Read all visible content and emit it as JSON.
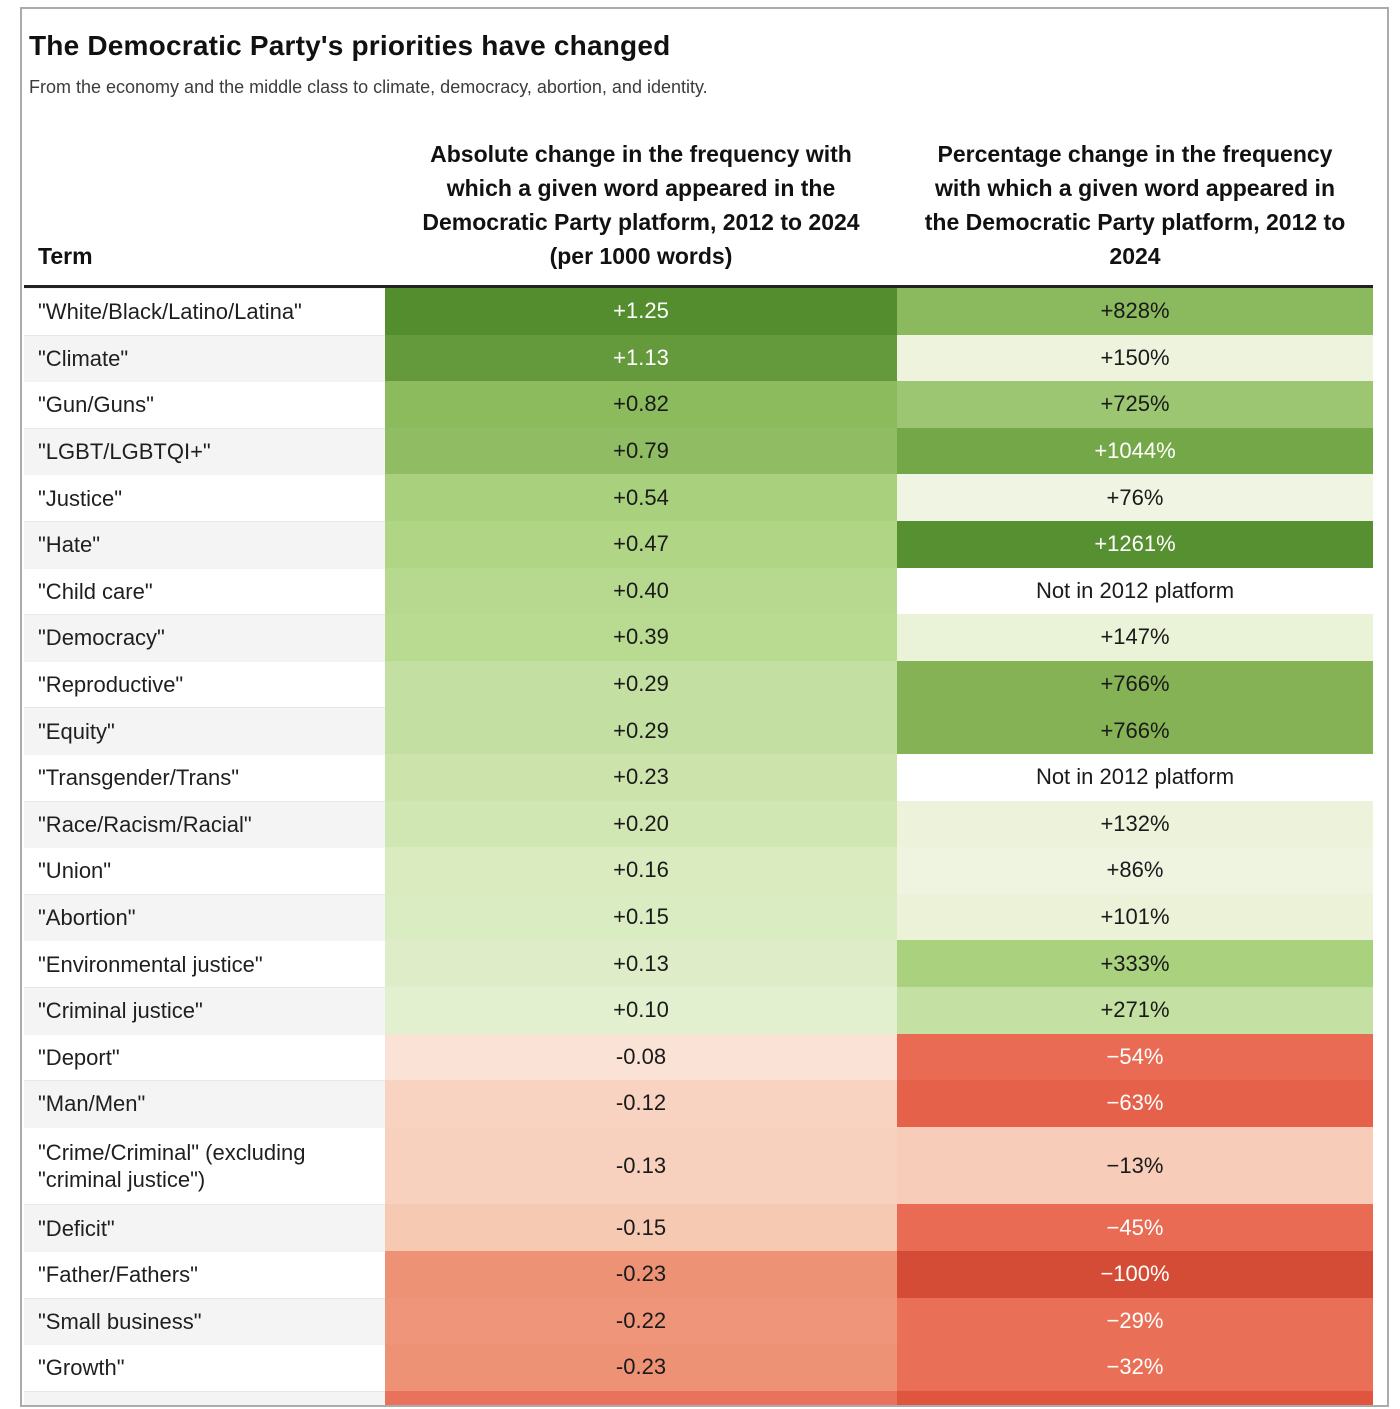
{
  "header": {
    "title": "The Democratic Party's priorities have changed",
    "subtitle": "From the economy and the middle class to climate, democracy, abortion, and identity."
  },
  "table": {
    "columns": {
      "term": "Term",
      "absolute": "Absolute change in the frequency with which a given word appeared in the Democratic Party platform, 2012 to 2024 (per 1000 words)",
      "percent": "Percentage change in the frequency with which a given word appeared in the Democratic Party platform, 2012 to 2024"
    },
    "rows": [
      {
        "term": "\"White/Black/Latino/Latina\"",
        "abs": "+1.25",
        "abs_bg": "#538d2d",
        "abs_fg": "#ffffff",
        "pct": "+828%",
        "pct_bg": "#8bb95e",
        "pct_fg": "#1a1a1a"
      },
      {
        "term": "\"Climate\"",
        "abs": "+1.13",
        "abs_bg": "#649a3c",
        "abs_fg": "#ffffff",
        "pct": "+150%",
        "pct_bg": "#edf3dc",
        "pct_fg": "#1a1a1a"
      },
      {
        "term": "\"Gun/Guns\"",
        "abs": "+0.82",
        "abs_bg": "#8cbb5e",
        "abs_fg": "#1a1a1a",
        "pct": "+725%",
        "pct_bg": "#9cc672",
        "pct_fg": "#1a1a1a"
      },
      {
        "term": "\"LGBT/LGBTQI+\"",
        "abs": "+0.79",
        "abs_bg": "#90bd63",
        "abs_fg": "#1a1a1a",
        "pct": "+1044%",
        "pct_bg": "#74a747",
        "pct_fg": "#ffffff"
      },
      {
        "term": "\"Justice\"",
        "abs": "+0.54",
        "abs_bg": "#a9d07c",
        "abs_fg": "#1a1a1a",
        "pct": "+76%",
        "pct_bg": "#f0f4e3",
        "pct_fg": "#1a1a1a"
      },
      {
        "term": "\"Hate\"",
        "abs": "+0.47",
        "abs_bg": "#b0d585",
        "abs_fg": "#1a1a1a",
        "pct": "+1261%",
        "pct_bg": "#579030",
        "pct_fg": "#ffffff"
      },
      {
        "term": "\"Child care\"",
        "abs": "+0.40",
        "abs_bg": "#b7d98f",
        "abs_fg": "#1a1a1a",
        "pct": "Not in 2012 platform",
        "pct_bg": "#ffffff",
        "pct_fg": "#1a1a1a"
      },
      {
        "term": "\"Democracy\"",
        "abs": "+0.39",
        "abs_bg": "#b8da91",
        "abs_fg": "#1a1a1a",
        "pct": "+147%",
        "pct_bg": "#eaf2d7",
        "pct_fg": "#1a1a1a"
      },
      {
        "term": "\"Reproductive\"",
        "abs": "+0.29",
        "abs_bg": "#c3dfa1",
        "abs_fg": "#1a1a1a",
        "pct": "+766%",
        "pct_bg": "#84b254",
        "pct_fg": "#1a1a1a"
      },
      {
        "term": "\"Equity\"",
        "abs": "+0.29",
        "abs_bg": "#c3dfa1",
        "abs_fg": "#1a1a1a",
        "pct": "+766%",
        "pct_bg": "#84b254",
        "pct_fg": "#1a1a1a"
      },
      {
        "term": "\"Transgender/Trans\"",
        "abs": "+0.23",
        "abs_bg": "#cce4ac",
        "abs_fg": "#1a1a1a",
        "pct": "Not in 2012 platform",
        "pct_bg": "#ffffff",
        "pct_fg": "#1a1a1a"
      },
      {
        "term": "\"Race/Racism/Racial\"",
        "abs": "+0.20",
        "abs_bg": "#d1e7b3",
        "abs_fg": "#1a1a1a",
        "pct": "+132%",
        "pct_bg": "#ecf3da",
        "pct_fg": "#1a1a1a"
      },
      {
        "term": "\"Union\"",
        "abs": "+0.16",
        "abs_bg": "#d9ebbf",
        "abs_fg": "#1a1a1a",
        "pct": "+86%",
        "pct_bg": "#eff4e1",
        "pct_fg": "#1a1a1a"
      },
      {
        "term": "\"Abortion\"",
        "abs": "+0.15",
        "abs_bg": "#daecc1",
        "abs_fg": "#1a1a1a",
        "pct": "+101%",
        "pct_bg": "#ebf2d8",
        "pct_fg": "#1a1a1a"
      },
      {
        "term": "\"Environmental justice\"",
        "abs": "+0.13",
        "abs_bg": "#deedc7",
        "abs_fg": "#1a1a1a",
        "pct": "+333%",
        "pct_bg": "#aad17e",
        "pct_fg": "#1a1a1a"
      },
      {
        "term": "\"Criminal justice\"",
        "abs": "+0.10",
        "abs_bg": "#e3f0cf",
        "abs_fg": "#1a1a1a",
        "pct": "+271%",
        "pct_bg": "#c4e0a3",
        "pct_fg": "#1a1a1a"
      },
      {
        "term": "\"Deport\"",
        "abs": "-0.08",
        "abs_bg": "#fbe2d7",
        "abs_fg": "#1a1a1a",
        "pct": "−54%",
        "pct_bg": "#e96b53",
        "pct_fg": "#ffffff"
      },
      {
        "term": "\"Man/Men\"",
        "abs": "-0.12",
        "abs_bg": "#f8d3c1",
        "abs_fg": "#1a1a1a",
        "pct": "−63%",
        "pct_bg": "#e66149",
        "pct_fg": "#ffffff"
      },
      {
        "term": "\"Crime/Criminal\" (excluding \"criminal justice\")",
        "abs": "-0.13",
        "abs_bg": "#f8d1be",
        "abs_fg": "#1a1a1a",
        "pct": "−13%",
        "pct_bg": "#f7ccb8",
        "pct_fg": "#1a1a1a",
        "tall": true
      },
      {
        "term": "\"Deficit\"",
        "abs": "-0.15",
        "abs_bg": "#f6c9b3",
        "abs_fg": "#1a1a1a",
        "pct": "−45%",
        "pct_bg": "#e96b53",
        "pct_fg": "#ffffff"
      },
      {
        "term": "\"Father/Fathers\"",
        "abs": "-0.23",
        "abs_bg": "#ee9276",
        "abs_fg": "#1a1a1a",
        "pct": "−100%",
        "pct_bg": "#d54c36",
        "pct_fg": "#ffffff"
      },
      {
        "term": "\"Small business\"",
        "abs": "-0.22",
        "abs_bg": "#ef9579",
        "abs_fg": "#1a1a1a",
        "pct": "−29%",
        "pct_bg": "#e97057",
        "pct_fg": "#ffffff"
      },
      {
        "term": "\"Growth\"",
        "abs": "-0.23",
        "abs_bg": "#ee9276",
        "abs_fg": "#1a1a1a",
        "pct": "−32%",
        "pct_bg": "#e97057",
        "pct_fg": "#ffffff"
      },
      {
        "term": "",
        "abs": "",
        "abs_bg": "#e8725b",
        "abs_fg": "#1a1a1a",
        "pct": "",
        "pct_bg": "#df553e",
        "pct_fg": "#ffffff",
        "partial": true
      }
    ]
  },
  "colors": {
    "positive_max_green": "#538d2d",
    "positive_min_green": "#e3f0cf",
    "negative_min_red": "#fbe2d7",
    "negative_max_red": "#d54c36",
    "header_rule": "#222222",
    "zebra_gray": "#f4f4f4",
    "frame_border": "#ababab"
  },
  "chart_data": {
    "type": "heatmap",
    "title": "The Democratic Party's priorities have changed",
    "subtitle": "From the economy and the middle class to climate, democracy, abortion, and identity.",
    "columns": [
      "Term",
      "Absolute change in the frequency with which a given word appeared in the Democratic Party platform, 2012 to 2024 (per 1000 words)",
      "Percentage change in the frequency with which a given word appeared in the Democratic Party platform, 2012 to 2024"
    ],
    "rows": [
      {
        "term": "White/Black/Latino/Latina",
        "absolute_change_per_1000_words": 1.25,
        "percent_change": 828
      },
      {
        "term": "Climate",
        "absolute_change_per_1000_words": 1.13,
        "percent_change": 150
      },
      {
        "term": "Gun/Guns",
        "absolute_change_per_1000_words": 0.82,
        "percent_change": 725
      },
      {
        "term": "LGBT/LGBTQI+",
        "absolute_change_per_1000_words": 0.79,
        "percent_change": 1044
      },
      {
        "term": "Justice",
        "absolute_change_per_1000_words": 0.54,
        "percent_change": 76
      },
      {
        "term": "Hate",
        "absolute_change_per_1000_words": 0.47,
        "percent_change": 1261
      },
      {
        "term": "Child care",
        "absolute_change_per_1000_words": 0.4,
        "percent_change": "Not in 2012 platform"
      },
      {
        "term": "Democracy",
        "absolute_change_per_1000_words": 0.39,
        "percent_change": 147
      },
      {
        "term": "Reproductive",
        "absolute_change_per_1000_words": 0.29,
        "percent_change": 766
      },
      {
        "term": "Equity",
        "absolute_change_per_1000_words": 0.29,
        "percent_change": 766
      },
      {
        "term": "Transgender/Trans",
        "absolute_change_per_1000_words": 0.23,
        "percent_change": "Not in 2012 platform"
      },
      {
        "term": "Race/Racism/Racial",
        "absolute_change_per_1000_words": 0.2,
        "percent_change": 132
      },
      {
        "term": "Union",
        "absolute_change_per_1000_words": 0.16,
        "percent_change": 86
      },
      {
        "term": "Abortion",
        "absolute_change_per_1000_words": 0.15,
        "percent_change": 101
      },
      {
        "term": "Environmental justice",
        "absolute_change_per_1000_words": 0.13,
        "percent_change": 333
      },
      {
        "term": "Criminal justice",
        "absolute_change_per_1000_words": 0.1,
        "percent_change": 271
      },
      {
        "term": "Deport",
        "absolute_change_per_1000_words": -0.08,
        "percent_change": -54
      },
      {
        "term": "Man/Men",
        "absolute_change_per_1000_words": -0.12,
        "percent_change": -63
      },
      {
        "term": "Crime/Criminal (excluding criminal justice)",
        "absolute_change_per_1000_words": -0.13,
        "percent_change": -13
      },
      {
        "term": "Deficit",
        "absolute_change_per_1000_words": -0.15,
        "percent_change": -45
      },
      {
        "term": "Father/Fathers",
        "absolute_change_per_1000_words": -0.23,
        "percent_change": -100
      },
      {
        "term": "Small business",
        "absolute_change_per_1000_words": -0.22,
        "percent_change": -29
      },
      {
        "term": "Growth",
        "absolute_change_per_1000_words": -0.23,
        "percent_change": -32
      }
    ]
  }
}
